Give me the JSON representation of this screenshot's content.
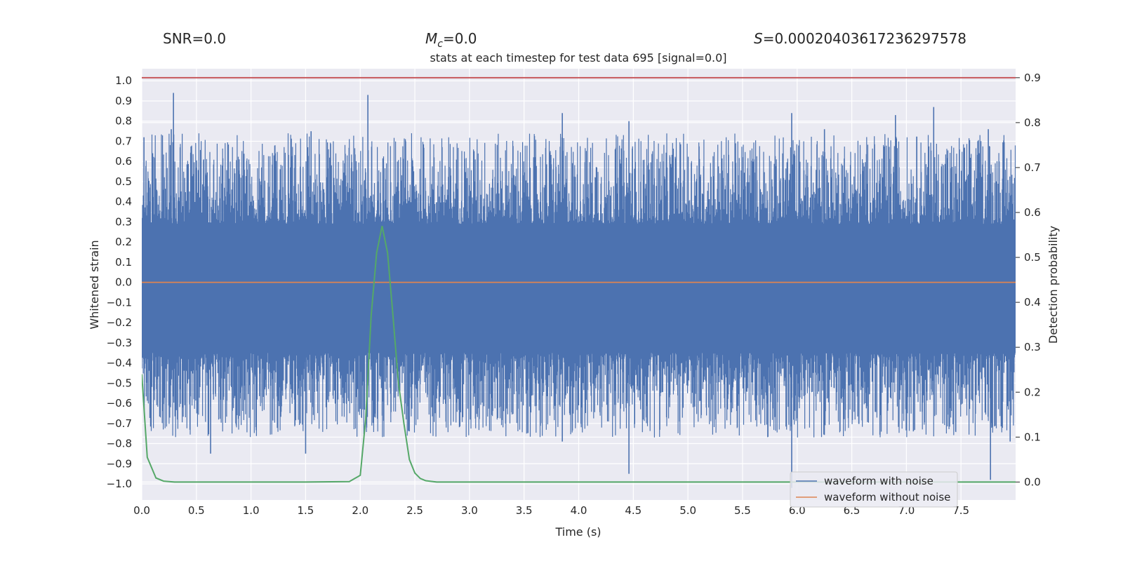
{
  "header": {
    "snr_label": "SNR=0.0",
    "mc_symbol": "M",
    "mc_subscript": "c",
    "mc_value": "=0.0",
    "s_symbol": "S",
    "s_value": "=0.00020403617236297578",
    "subtitle": "stats at each timestep for test data 695 [signal=0.0]"
  },
  "chart_data": {
    "type": "line",
    "xlabel": "Time (s)",
    "ylabel_left": "Whitened strain",
    "ylabel_right": "Detection probability",
    "xlim": [
      0.0,
      8.0
    ],
    "ylim_left": [
      -1.08,
      1.06
    ],
    "ylim_right": [
      -0.04,
      0.92
    ],
    "x_ticks": [
      "0.0",
      "0.5",
      "1.0",
      "1.5",
      "2.0",
      "2.5",
      "3.0",
      "3.5",
      "4.0",
      "4.5",
      "5.0",
      "5.5",
      "6.0",
      "6.5",
      "7.0",
      "7.5"
    ],
    "y_left_ticks": [
      "1.0",
      "0.9",
      "0.8",
      "0.7",
      "0.6",
      "0.5",
      "0.4",
      "0.3",
      "0.2",
      "0.1",
      "0.0",
      "-0.1",
      "-0.2",
      "-0.3",
      "-0.4",
      "-0.5",
      "-0.6",
      "-0.7",
      "-0.8",
      "-0.9",
      "-1.0"
    ],
    "y_right_ticks": [
      "0.9",
      "0.8",
      "0.7",
      "0.6",
      "0.5",
      "0.4",
      "0.3",
      "0.2",
      "0.1",
      "0.0"
    ],
    "grid": true,
    "legend_position": "lower-right",
    "series": [
      {
        "name": "waveform with noise",
        "axis": "left",
        "color": "#4c72b0",
        "style": "dense noise band, typical range -0.35 to 0.29",
        "spikes_up": [
          [
            0.02,
            0.72
          ],
          [
            0.29,
            0.94
          ],
          [
            0.27,
            0.76
          ],
          [
            1.55,
            0.75
          ],
          [
            2.07,
            0.93
          ],
          [
            3.85,
            0.84
          ],
          [
            4.46,
            0.8
          ],
          [
            5.95,
            0.84
          ],
          [
            6.25,
            0.76
          ],
          [
            6.9,
            0.83
          ],
          [
            7.25,
            0.87
          ],
          [
            7.75,
            0.76
          ]
        ],
        "spikes_down": [
          [
            0.63,
            -0.85
          ],
          [
            1.5,
            -0.85
          ],
          [
            3.85,
            -0.79
          ],
          [
            4.46,
            -0.95
          ],
          [
            5.95,
            -1.02
          ],
          [
            6.5,
            -0.0
          ],
          [
            7.77,
            -0.98
          ],
          [
            7.95,
            -0.79
          ]
        ]
      },
      {
        "name": "waveform without noise",
        "axis": "left",
        "color": "#dd8452",
        "x": [
          0.0,
          8.0
        ],
        "y": [
          0.0,
          0.0
        ]
      },
      {
        "axis": "right",
        "color": "#55a868",
        "x": [
          0.0,
          0.05,
          0.13,
          0.2,
          0.3,
          0.5,
          1.0,
          1.5,
          1.9,
          1.95,
          2.0,
          2.05,
          2.1,
          2.15,
          2.2,
          2.25,
          2.3,
          2.35,
          2.4,
          2.45,
          2.5,
          2.55,
          2.6,
          2.7,
          3.0,
          4.0,
          5.0,
          6.0,
          7.0,
          8.0
        ],
        "y": [
          0.24,
          0.055,
          0.009,
          0.002,
          0.0,
          0.0,
          0.0,
          0.0,
          0.001,
          0.008,
          0.015,
          0.14,
          0.37,
          0.51,
          0.57,
          0.51,
          0.37,
          0.22,
          0.13,
          0.05,
          0.02,
          0.008,
          0.003,
          0.0,
          0.0,
          0.0,
          0.0,
          0.0,
          0.0,
          0.0
        ]
      },
      {
        "axis": "right",
        "color": "#c44e52",
        "x": [
          0.0,
          8.0
        ],
        "y": [
          0.9,
          0.9
        ]
      }
    ]
  }
}
